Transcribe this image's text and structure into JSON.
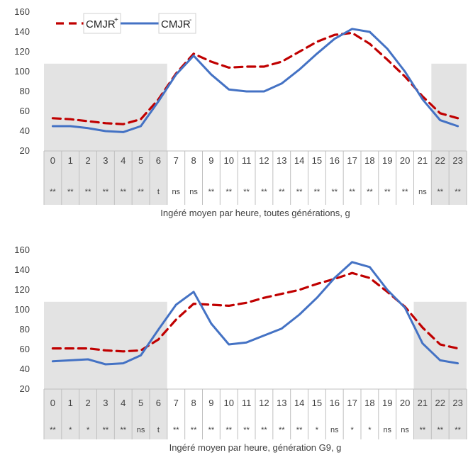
{
  "legend": {
    "plus_label": "CMJR",
    "plus_sup": "+",
    "minus_label": "CMJR",
    "minus_sup": "-"
  },
  "colors": {
    "plus": "#c00000",
    "minus": "#4472c4",
    "shade": "#e3e3e3",
    "grid_line": "#bfbfbf",
    "text": "#404040"
  },
  "chart_data": [
    {
      "type": "line",
      "xlabel": "Ingéré moyen par heure, toutes générations, g",
      "ylabel": "",
      "ylim": [
        20,
        160
      ],
      "yticks": [
        20,
        40,
        60,
        80,
        100,
        120,
        140,
        160
      ],
      "categories": [
        "0",
        "1",
        "2",
        "3",
        "4",
        "5",
        "6",
        "7",
        "8",
        "9",
        "10",
        "11",
        "12",
        "13",
        "14",
        "15",
        "16",
        "17",
        "18",
        "19",
        "20",
        "21",
        "22",
        "23"
      ],
      "significance": [
        "**",
        "**",
        "**",
        "**",
        "**",
        "**",
        "t",
        "ns",
        "ns",
        "**",
        "**",
        "**",
        "**",
        "**",
        "**",
        "**",
        "**",
        "**",
        "**",
        "**",
        "**",
        "ns",
        "**",
        "**"
      ],
      "shaded_hours": [
        [
          0,
          6
        ],
        [
          22,
          23
        ]
      ],
      "shade_ymax": 108,
      "series": [
        {
          "name": "CMJR+",
          "style": "dashed",
          "values": [
            53,
            52,
            50,
            48,
            47,
            52,
            72,
            98,
            118,
            110,
            104,
            105,
            105,
            110,
            120,
            130,
            137,
            139,
            128,
            112,
            95,
            75,
            58,
            53
          ]
        },
        {
          "name": "CMJR-",
          "style": "solid",
          "values": [
            45,
            45,
            43,
            40,
            39,
            45,
            70,
            97,
            116,
            97,
            82,
            80,
            80,
            88,
            102,
            118,
            133,
            143,
            140,
            123,
            100,
            72,
            51,
            45
          ]
        }
      ]
    },
    {
      "type": "line",
      "xlabel": "Ingéré moyen par heure, génération G9, g",
      "ylabel": "",
      "ylim": [
        20,
        160
      ],
      "yticks": [
        20,
        40,
        60,
        80,
        100,
        120,
        140,
        160
      ],
      "categories": [
        "0",
        "1",
        "2",
        "3",
        "4",
        "5",
        "6",
        "7",
        "8",
        "9",
        "10",
        "11",
        "12",
        "13",
        "14",
        "15",
        "16",
        "17",
        "18",
        "19",
        "20",
        "21",
        "22",
        "23"
      ],
      "significance": [
        "**",
        "*",
        "*",
        "**",
        "**",
        "ns",
        "t",
        "**",
        "**",
        "**",
        "**",
        "**",
        "**",
        "**",
        "**",
        "*",
        "ns",
        "*",
        "*",
        "ns",
        "ns",
        "**",
        "**",
        "**"
      ],
      "shaded_hours": [
        [
          0,
          6
        ],
        [
          21,
          23
        ]
      ],
      "shade_ymax": 108,
      "series": [
        {
          "name": "CMJR+",
          "style": "dashed",
          "values": [
            61,
            61,
            61,
            59,
            58,
            59,
            70,
            90,
            106,
            105,
            104,
            107,
            112,
            116,
            120,
            126,
            131,
            137,
            132,
            118,
            103,
            82,
            65,
            61
          ]
        },
        {
          "name": "CMJR-",
          "style": "solid",
          "values": [
            48,
            49,
            50,
            45,
            46,
            54,
            80,
            105,
            118,
            86,
            65,
            67,
            74,
            81,
            95,
            112,
            132,
            148,
            143,
            120,
            102,
            66,
            49,
            46
          ]
        }
      ]
    }
  ]
}
